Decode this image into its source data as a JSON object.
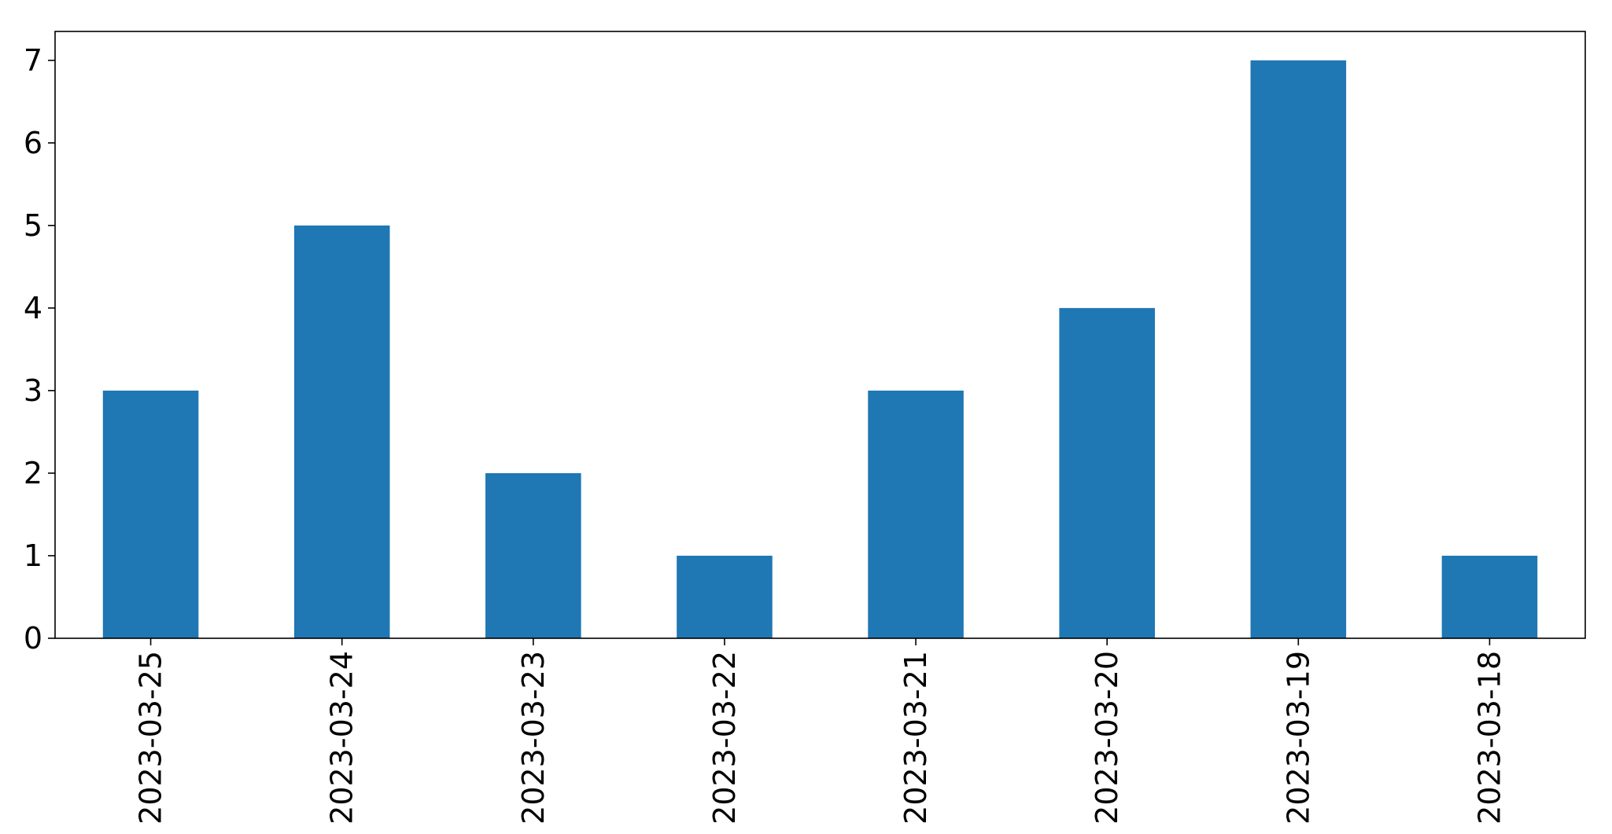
{
  "chart_data": {
    "type": "bar",
    "title": "",
    "xlabel": "",
    "ylabel": "",
    "categories": [
      "2023-03-25",
      "2023-03-24",
      "2023-03-23",
      "2023-03-22",
      "2023-03-21",
      "2023-03-20",
      "2023-03-19",
      "2023-03-18"
    ],
    "values": [
      3,
      5,
      2,
      1,
      3,
      4,
      7,
      1
    ],
    "ylim": [
      0,
      7.35
    ],
    "yticks": [
      0,
      1,
      2,
      3,
      4,
      5,
      6,
      7
    ],
    "grid": false,
    "legend": "none",
    "bar_color": "#1f77b4"
  }
}
